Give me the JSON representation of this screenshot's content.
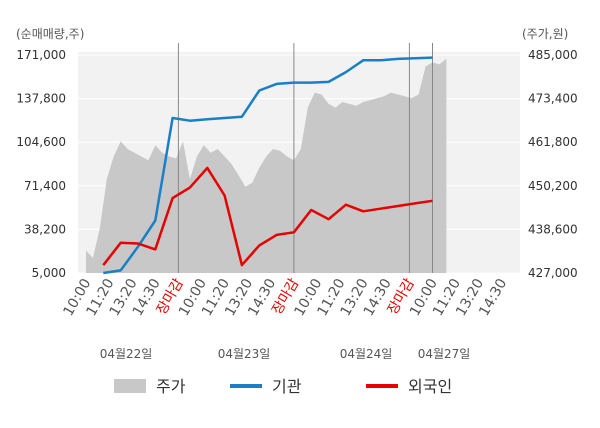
{
  "chart_data": {
    "type": "line",
    "left_axis_unit": "(순매매량,주)",
    "right_axis_unit": "(주가,원)",
    "left_ticks": [
      "171,000",
      "137,800",
      "104,600",
      "71,400",
      "38,200",
      "5,000"
    ],
    "left_tick_values": [
      171000,
      137800,
      104600,
      71400,
      38200,
      5000
    ],
    "right_ticks": [
      "485,000",
      "473,400",
      "461,800",
      "450,200",
      "438,600",
      "427,000"
    ],
    "right_tick_values": [
      485000,
      473400,
      461800,
      450200,
      438600,
      427000
    ],
    "ylim_left": [
      5000,
      171000
    ],
    "ylim_right": [
      427000,
      485000
    ],
    "x_ticks": [
      {
        "label": "10:00",
        "color": "#555555"
      },
      {
        "label": "11:20",
        "color": "#555555"
      },
      {
        "label": "13:20",
        "color": "#555555"
      },
      {
        "label": "14:30",
        "color": "#555555"
      },
      {
        "label": "장마감",
        "color": "#e60000"
      },
      {
        "label": "10:00",
        "color": "#555555"
      },
      {
        "label": "11:20",
        "color": "#555555"
      },
      {
        "label": "13:20",
        "color": "#555555"
      },
      {
        "label": "14:30",
        "color": "#555555"
      },
      {
        "label": "장마감",
        "color": "#e60000"
      },
      {
        "label": "10:00",
        "color": "#555555"
      },
      {
        "label": "11:20",
        "color": "#555555"
      },
      {
        "label": "13:20",
        "color": "#555555"
      },
      {
        "label": "14:30",
        "color": "#555555"
      },
      {
        "label": "장마감",
        "color": "#e60000"
      },
      {
        "label": "10:00",
        "color": "#555555"
      },
      {
        "label": "11:20",
        "color": "#555555"
      },
      {
        "label": "13:20",
        "color": "#555555"
      },
      {
        "label": "14:30",
        "color": "#555555"
      }
    ],
    "dates": [
      "04월22일",
      "04월23일",
      "04월24일",
      "04월27일"
    ],
    "series": [
      {
        "name": "주가",
        "axis": "right",
        "color": "#c8c8c8",
        "x": [
          0,
          0.3,
          0.6,
          0.9,
          1.2,
          1.5,
          1.8,
          2.1,
          2.4,
          2.7,
          3.0,
          3.3,
          3.6,
          3.9,
          4.2,
          4.5,
          4.8,
          5.1,
          5.4,
          5.7,
          6.0,
          6.3,
          6.6,
          6.9,
          7.2,
          7.5,
          7.8,
          8.1,
          8.4,
          8.7,
          9.0,
          9.3,
          9.6,
          9.9,
          10.2,
          10.5,
          10.8,
          11.1,
          11.4,
          11.7,
          12.0,
          12.3,
          12.6,
          12.9,
          13.2,
          13.5,
          13.8,
          14.1,
          14.4,
          14.7,
          15.0,
          15.3,
          15.6
        ],
        "values": [
          433000,
          431000,
          439000,
          452000,
          458000,
          462000,
          460000,
          459000,
          458000,
          457000,
          461000,
          459000,
          458000,
          457500,
          462000,
          452000,
          458000,
          461000,
          459000,
          460000,
          458000,
          456000,
          453000,
          450000,
          451000,
          455000,
          458000,
          460000,
          459500,
          458000,
          457000,
          460000,
          471000,
          475000,
          474500,
          472000,
          471000,
          472500,
          472000,
          471500,
          472500,
          473000,
          473500,
          474000,
          475000,
          474500,
          474000,
          473500,
          474500,
          482000,
          483000,
          482500,
          484000
        ]
      },
      {
        "name": "기관",
        "axis": "left",
        "color": "#1a7fc4",
        "x": [
          0.75,
          1.5,
          2.25,
          3.0,
          3.75,
          4.5,
          5.25,
          6.0,
          6.75,
          7.5,
          8.25,
          9.0,
          9.75,
          10.5,
          11.25,
          12.0,
          12.75,
          13.5,
          14.25,
          15.0
        ],
        "values": [
          5000,
          7000,
          25000,
          45000,
          123000,
          121000,
          122000,
          123000,
          124000,
          144000,
          149000,
          150000,
          150000,
          150500,
          158000,
          167000,
          167000,
          168000,
          168500,
          169000
        ]
      },
      {
        "name": "외국인",
        "axis": "left",
        "color": "#e60000",
        "x": [
          0.75,
          1.5,
          2.25,
          3.0,
          3.75,
          4.5,
          5.25,
          6.0,
          6.75,
          7.5,
          8.25,
          9.0,
          9.75,
          10.5,
          11.25,
          12.0,
          12.75,
          13.5,
          14.25,
          15.0
        ],
        "values": [
          11000,
          28000,
          27500,
          23000,
          62000,
          70000,
          85000,
          64000,
          11000,
          26000,
          34000,
          36000,
          53000,
          46000,
          57000,
          52000,
          54000,
          56000,
          58000,
          60000
        ]
      }
    ],
    "legend": [
      {
        "label": "주가",
        "color": "#c8c8c8",
        "kind": "area"
      },
      {
        "label": "기관",
        "color": "#1a7fc4",
        "kind": "line"
      },
      {
        "label": "외국인",
        "color": "#e60000",
        "kind": "line"
      }
    ],
    "grid": true
  }
}
